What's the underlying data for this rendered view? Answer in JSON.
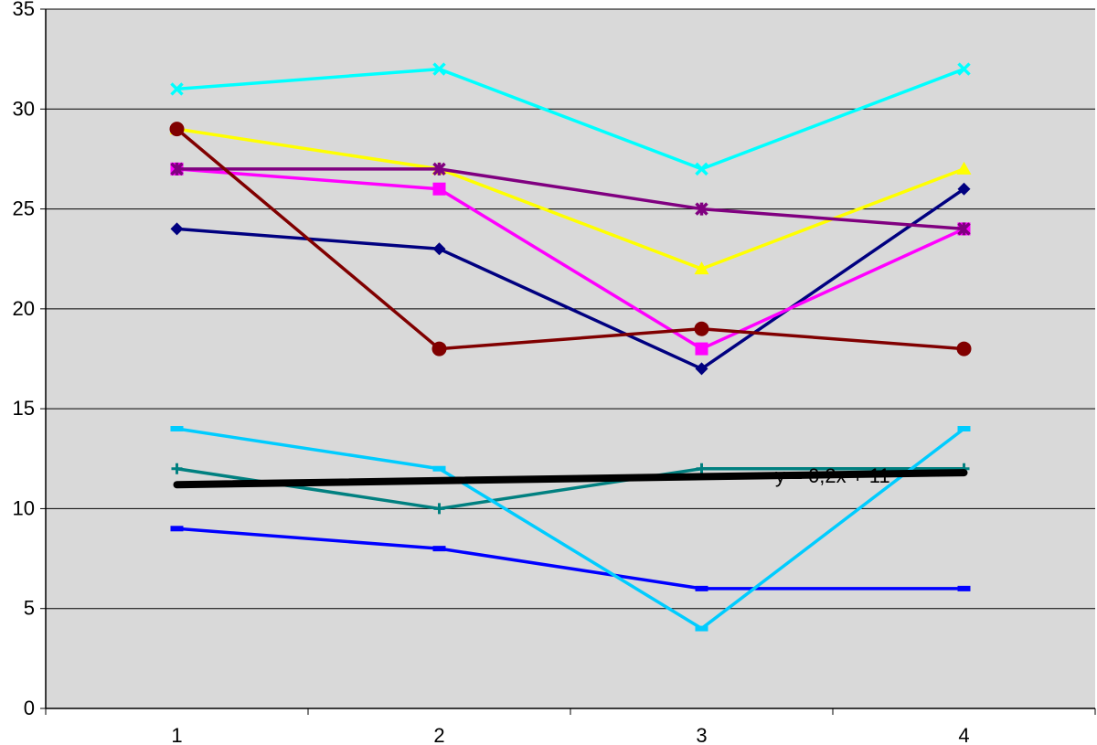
{
  "chart_data": {
    "type": "line",
    "title": "",
    "xlabel": "",
    "ylabel": "",
    "categories": [
      "1",
      "2",
      "3",
      "4"
    ],
    "ylim": [
      0,
      35
    ],
    "yticks": [
      0,
      5,
      10,
      15,
      20,
      25,
      30,
      35
    ],
    "grid": "horizontal major gridlines",
    "legend": "none",
    "plot_background": "#d9d9d9",
    "series": [
      {
        "values": [
          24,
          23,
          17,
          26
        ],
        "color": "#000080",
        "marker": "diamond"
      },
      {
        "values": [
          27,
          26,
          18,
          24
        ],
        "color": "#ff00ff",
        "marker": "square"
      },
      {
        "values": [
          29,
          27,
          22,
          27
        ],
        "color": "#ffff00",
        "marker": "triangle"
      },
      {
        "values": [
          31,
          32,
          27,
          32
        ],
        "color": "#00ffff",
        "marker": "x"
      },
      {
        "values": [
          27,
          27,
          25,
          24
        ],
        "color": "#800080",
        "marker": "star"
      },
      {
        "values": [
          29,
          18,
          19,
          18
        ],
        "color": "#800000",
        "marker": "circle"
      },
      {
        "values": [
          12,
          10,
          12,
          12
        ],
        "color": "#008080",
        "marker": "plus"
      },
      {
        "values": [
          9,
          8,
          6,
          6
        ],
        "color": "#0000ff",
        "marker": "dash"
      },
      {
        "values": [
          14,
          12,
          4,
          14
        ],
        "color": "#00ccff",
        "marker": "dash"
      }
    ],
    "trendline": {
      "equation": "y = 0,2x + 11",
      "slope": 0.2,
      "intercept": 11,
      "color": "#000000"
    }
  }
}
